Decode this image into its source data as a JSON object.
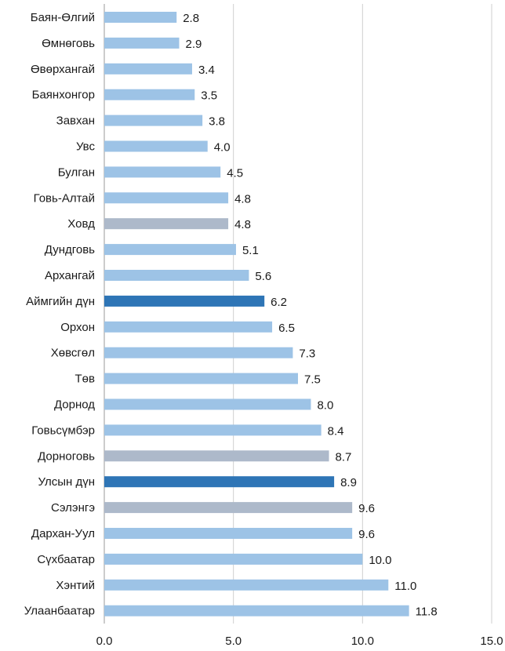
{
  "chart_data": {
    "type": "bar",
    "orientation": "horizontal",
    "title": "",
    "xlabel": "",
    "ylabel": "",
    "xlim": [
      0,
      15
    ],
    "x_ticks": [
      "0.0",
      "5.0",
      "10.0",
      "15.0"
    ],
    "grid": "vertical",
    "legend": "none",
    "categories": [
      "Баян-Өлгий",
      "Өмнөговь",
      "Өвөрхангай",
      "Баянхонгор",
      "Завхан",
      "Увс",
      "Булган",
      "Говь-Алтай",
      "Ховд",
      "Дундговь",
      "Архангай",
      "Аймгийн дүн",
      "Орхон",
      "Хөвсгөл",
      "Төв",
      "Дорнод",
      "Говьсүмбэр",
      "Дорноговь",
      "Улсын дүн",
      "Сэлэнгэ",
      "Дархан-Уул",
      "Сүхбаатар",
      "Хэнтий",
      "Улаанбаатар"
    ],
    "values": [
      2.8,
      2.9,
      3.4,
      3.5,
      3.8,
      4.0,
      4.5,
      4.8,
      4.8,
      5.1,
      5.6,
      6.2,
      6.5,
      7.3,
      7.5,
      8.0,
      8.4,
      8.7,
      8.9,
      9.6,
      9.6,
      10.0,
      11.0,
      11.8
    ],
    "value_labels": [
      "2.8",
      "2.9",
      "3.4",
      "3.5",
      "3.8",
      "4.0",
      "4.5",
      "4.8",
      "4.8",
      "5.1",
      "5.6",
      "6.2",
      "6.5",
      "7.3",
      "7.5",
      "8.0",
      "8.4",
      "8.7",
      "8.9",
      "9.6",
      "9.6",
      "10.0",
      "11.0",
      "11.8"
    ],
    "bar_colors": [
      "#9dc3e6",
      "#9dc3e6",
      "#9dc3e6",
      "#9dc3e6",
      "#9dc3e6",
      "#9dc3e6",
      "#9dc3e6",
      "#9dc3e6",
      "#adb9ca",
      "#9dc3e6",
      "#9dc3e6",
      "#2e75b6",
      "#9dc3e6",
      "#9dc3e6",
      "#9dc3e6",
      "#9dc3e6",
      "#9dc3e6",
      "#adb9ca",
      "#2e75b6",
      "#adb9ca",
      "#9dc3e6",
      "#9dc3e6",
      "#9dc3e6",
      "#9dc3e6"
    ]
  }
}
